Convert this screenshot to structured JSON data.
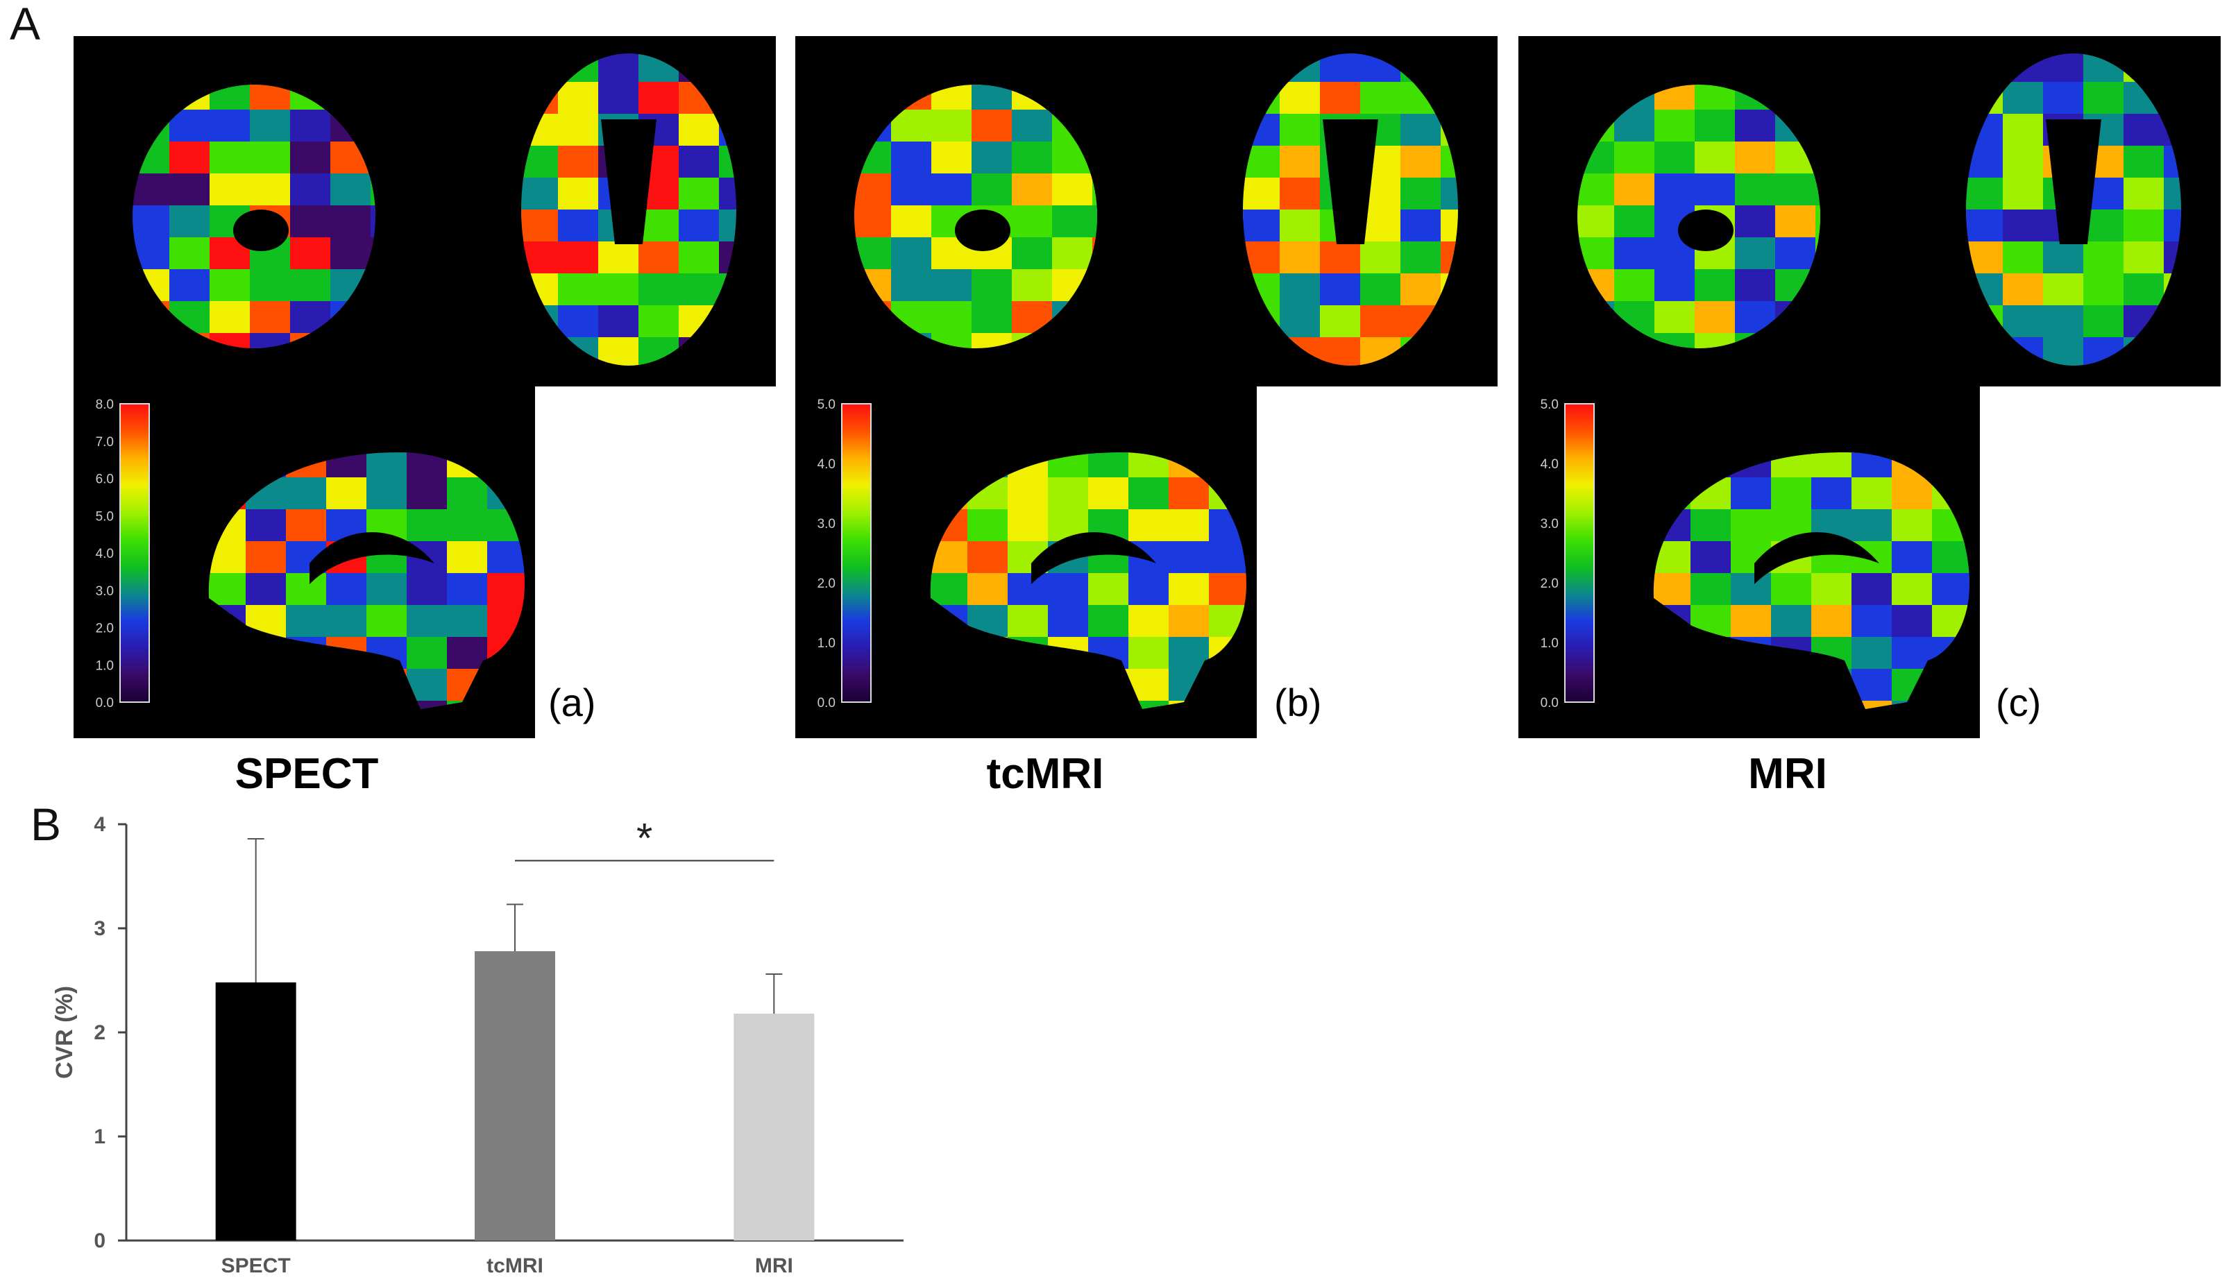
{
  "panel_a_label": "A",
  "panel_b_label": "B",
  "conditions": [
    {
      "name": "SPECT",
      "sublabel": "(a)",
      "colorbar_ticks": [
        "0.0",
        "1.0",
        "2.0",
        "3.0",
        "4.0",
        "5.0",
        "6.0",
        "7.0",
        "8.0"
      ]
    },
    {
      "name": "tcMRI",
      "sublabel": "(b)",
      "colorbar_ticks": [
        "0.0",
        "1.0",
        "2.0",
        "3.0",
        "4.0",
        "5.0"
      ]
    },
    {
      "name": "MRI",
      "sublabel": "(c)",
      "colorbar_ticks": [
        "0.0",
        "1.0",
        "2.0",
        "3.0",
        "4.0",
        "5.0"
      ]
    }
  ],
  "colormap": [
    "#1a0033",
    "#3a0a66",
    "#2a1cb0",
    "#1a3ae0",
    "#0a8a8a",
    "#10c020",
    "#40e000",
    "#a0f000",
    "#f0f000",
    "#ffb000",
    "#ff5000",
    "#ff1010"
  ],
  "chart_data": {
    "type": "bar",
    "categories": [
      "SPECT",
      "tcMRI",
      "MRI"
    ],
    "values": [
      2.48,
      2.78,
      2.18
    ],
    "errors": [
      1.38,
      0.45,
      0.38
    ],
    "colors": [
      "#000000",
      "#7f7f7f",
      "#d0d0d0"
    ],
    "ylabel": "CVR (%)",
    "ylim": [
      0,
      4
    ],
    "yticks": [
      "0",
      "1",
      "2",
      "3",
      "4"
    ],
    "significance": {
      "between": [
        "tcMRI",
        "MRI"
      ],
      "marker": "*"
    }
  }
}
